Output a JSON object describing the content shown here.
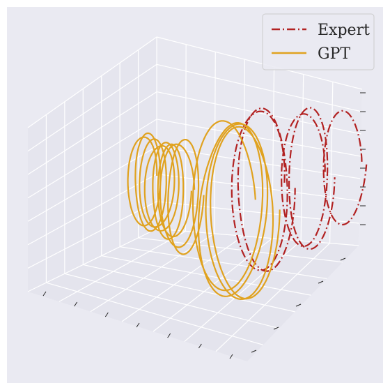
{
  "chart_data": {
    "type": "line",
    "projection": "3d",
    "title": "",
    "xlabel": "",
    "ylabel": "",
    "zlabel": "",
    "tick_labels_shown": false,
    "grid": true,
    "legend_position": "top-right",
    "series": [
      {
        "name": "Expert",
        "color": "#b22222",
        "linestyle": "dash-dot",
        "loops": [
          {
            "center": [
              2.2,
              0.0
            ],
            "radius": [
              1.1,
              1.9
            ],
            "turns": 2
          },
          {
            "center": [
              4.0,
              0.1
            ],
            "radius": [
              0.9,
              1.6
            ],
            "turns": 2
          },
          {
            "center": [
              5.6,
              0.2
            ],
            "radius": [
              0.8,
              1.4
            ],
            "turns": 1
          }
        ]
      },
      {
        "name": "GPT",
        "color": "#e0a21f",
        "linestyle": "solid",
        "loops": [
          {
            "center": [
              -2.4,
              0.7
            ],
            "radius": [
              0.6,
              1.1
            ],
            "turns": 6
          },
          {
            "center": [
              -1.0,
              0.2
            ],
            "radius": [
              0.7,
              1.3
            ],
            "turns": 2
          },
          {
            "center": [
              0.9,
              -0.3
            ],
            "radius": [
              1.3,
              2.1
            ],
            "turns": 4
          }
        ]
      }
    ]
  }
}
